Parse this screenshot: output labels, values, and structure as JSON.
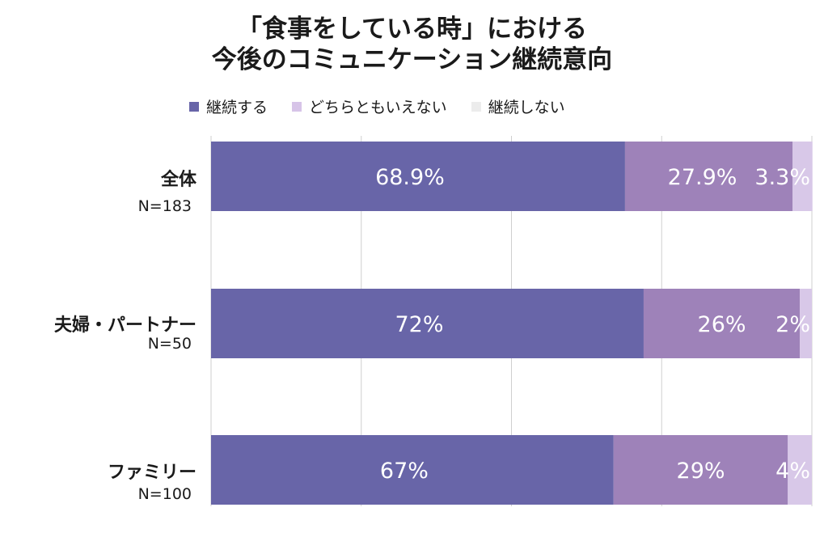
{
  "chart_data": {
    "type": "bar",
    "orientation": "horizontal",
    "stacked": true,
    "title_line1": "「食事をしている時」における",
    "title_line2": "今後のコミュニケーション継続意向",
    "categories": [
      {
        "label": "全体",
        "n": "N=183"
      },
      {
        "label": "夫婦・パートナー",
        "n": "N=50"
      },
      {
        "label": "ファミリー",
        "n": "N=100"
      }
    ],
    "series": [
      {
        "name": "継続する",
        "color": "#6865a8",
        "values": [
          68.9,
          72,
          67
        ],
        "labels": [
          "68.9%",
          "72%",
          "67%"
        ]
      },
      {
        "name": "どちらともいえない",
        "color": "#9e82b9",
        "values": [
          27.9,
          26,
          29
        ],
        "labels": [
          "27.9%",
          "26%",
          "29%"
        ]
      },
      {
        "name": "継続しない",
        "color": "#d8c8e8",
        "values": [
          3.3,
          2,
          4
        ],
        "labels": [
          "3.3%",
          "2%",
          "4%"
        ]
      }
    ],
    "legend_colors": [
      "#6865a8",
      "#d7c4e8",
      "#ececec"
    ],
    "xlim": [
      0,
      100
    ],
    "grid": true,
    "legend_position": "top"
  }
}
